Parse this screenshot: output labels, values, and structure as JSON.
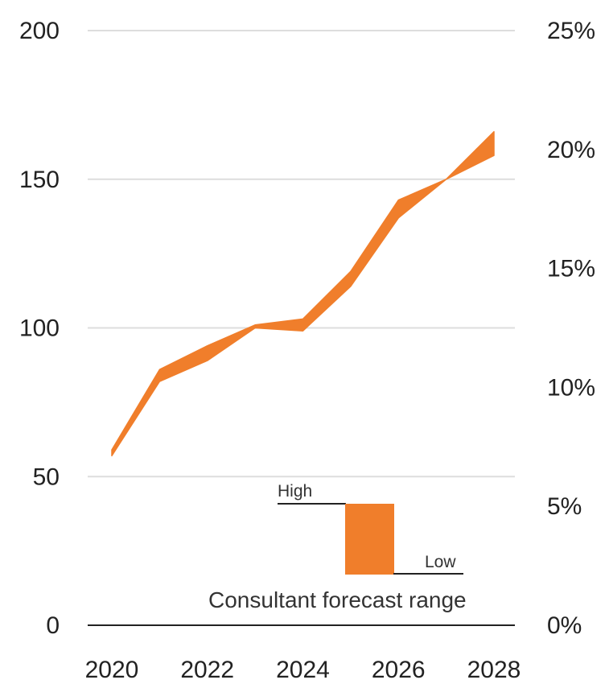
{
  "chart_data": {
    "type": "area",
    "x": [
      2020,
      2021,
      2022,
      2023,
      2024,
      2025,
      2026,
      2027,
      2028
    ],
    "series": [
      {
        "role": "high",
        "values": [
          59,
          86,
          94,
          101,
          103,
          119,
          143,
          150,
          166
        ]
      },
      {
        "role": "low",
        "values": [
          57,
          82,
          89,
          100,
          99,
          114,
          137,
          150,
          158
        ]
      }
    ],
    "x_ticks": [
      "2020",
      "2022",
      "2024",
      "2026",
      "2028"
    ],
    "y_left": {
      "ticks": [
        0,
        50,
        100,
        150,
        200
      ],
      "labels": [
        "0",
        "50",
        "100",
        "150",
        "200"
      ],
      "range": [
        0,
        200
      ]
    },
    "y_right": {
      "ticks": [
        0,
        5,
        10,
        15,
        20,
        25
      ],
      "labels": [
        "0%",
        "5%",
        "10%",
        "15%",
        "20%",
        "25%"
      ],
      "range": [
        0,
        25
      ]
    },
    "grid": true,
    "legend": {
      "high_label": "High",
      "low_label": "Low",
      "caption": "Consultant forecast range",
      "placement": "bottom-center"
    },
    "colors": {
      "band": "#F07E2B",
      "grid": "#DDDDDD",
      "axis": "#222222"
    }
  }
}
